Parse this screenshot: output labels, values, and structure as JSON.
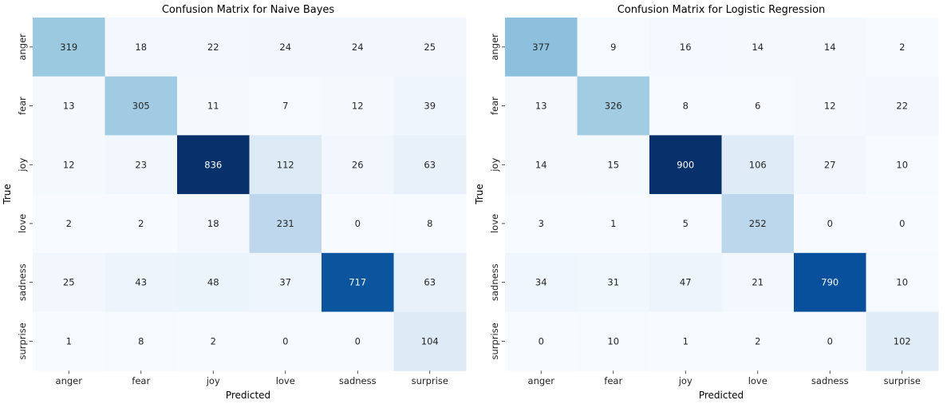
{
  "chart_data": [
    {
      "type": "heatmap",
      "title": "Confusion Matrix for Naive Bayes",
      "xlabel": "Predicted",
      "ylabel": "True",
      "x_categories": [
        "anger",
        "fear",
        "joy",
        "love",
        "sadness",
        "surprise"
      ],
      "y_categories": [
        "anger",
        "fear",
        "joy",
        "love",
        "sadness",
        "surprise"
      ],
      "values": [
        [
          319,
          18,
          22,
          24,
          24,
          25
        ],
        [
          13,
          305,
          11,
          7,
          12,
          39
        ],
        [
          12,
          23,
          836,
          112,
          26,
          63
        ],
        [
          2,
          2,
          18,
          231,
          0,
          8
        ],
        [
          25,
          43,
          48,
          37,
          717,
          63
        ],
        [
          1,
          8,
          2,
          0,
          0,
          104
        ]
      ],
      "colormap": "Blues",
      "colorbar": false
    },
    {
      "type": "heatmap",
      "title": "Confusion Matrix for Logistic Regression",
      "xlabel": "Predicted",
      "ylabel": "True",
      "x_categories": [
        "anger",
        "fear",
        "joy",
        "love",
        "sadness",
        "surprise"
      ],
      "y_categories": [
        "anger",
        "fear",
        "joy",
        "love",
        "sadness",
        "surprise"
      ],
      "values": [
        [
          377,
          9,
          16,
          14,
          14,
          2
        ],
        [
          13,
          326,
          8,
          6,
          12,
          22
        ],
        [
          14,
          15,
          900,
          106,
          27,
          10
        ],
        [
          3,
          1,
          5,
          252,
          0,
          0
        ],
        [
          34,
          31,
          47,
          21,
          790,
          10
        ],
        [
          0,
          10,
          1,
          2,
          0,
          102
        ]
      ],
      "colormap": "Blues",
      "colorbar": false
    }
  ]
}
